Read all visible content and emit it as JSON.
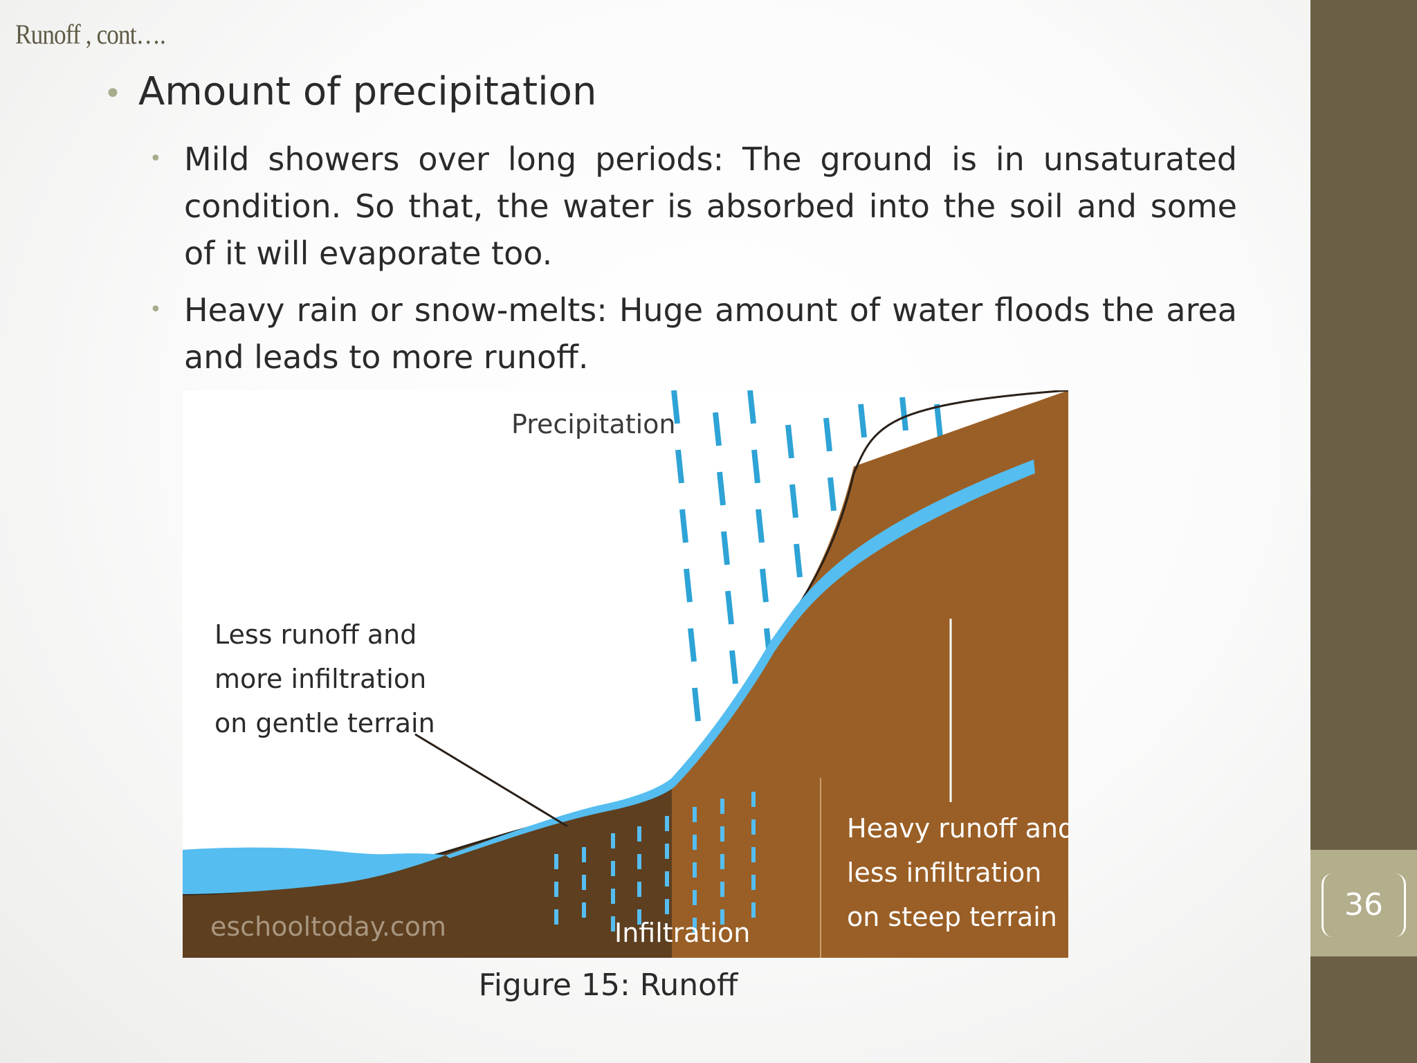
{
  "header": {
    "title": "Runoff , cont…."
  },
  "content": {
    "main_bullet": "Amount of precipitation",
    "sub_bullets": [
      "Mild showers over long periods: The ground is in unsaturated condition. So that, the water is absorbed into the soil and some of it will evaporate too.",
      "Heavy rain or snow-melts: Huge amount of water floods the area and leads to more runoff."
    ]
  },
  "figure": {
    "labels": {
      "precipitation": "Precipitation",
      "gentle_line1": "Less runoff and",
      "gentle_line2": "more infiltration",
      "gentle_line3": "on gentle terrain",
      "steep_line1": "Heavy runoff and",
      "steep_line2": "less infiltration",
      "steep_line3": "on steep terrain",
      "infiltration": "Infiltration",
      "watermark": "eschooltoday.com"
    },
    "colors": {
      "soil_dark": "#5e3f1f",
      "soil_light": "#9a5f26",
      "water": "#55bdf0",
      "rain": "#2ea3d6"
    },
    "caption": "Figure 15: Runoff"
  },
  "footer": {
    "page_number": "36"
  }
}
